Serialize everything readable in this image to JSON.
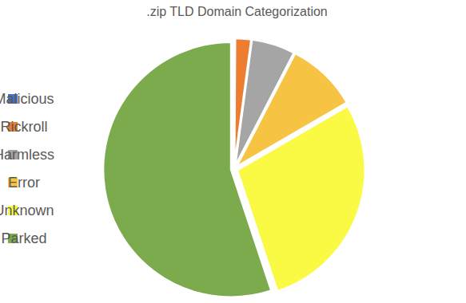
{
  "chart_data": {
    "type": "pie",
    "title": ".zip TLD Domain Categorization",
    "categories": [
      "Malicious",
      "Rickroll",
      "Harmless",
      "Error",
      "Unknown",
      "Parked"
    ],
    "values": [
      0.1,
      2,
      5.5,
      9,
      28.3,
      55.1
    ],
    "colors": [
      "#4472c4",
      "#ed7d31",
      "#a5a5a5",
      "#f6c343",
      "#fafa44",
      "#7cab4e"
    ],
    "legend": "left"
  }
}
